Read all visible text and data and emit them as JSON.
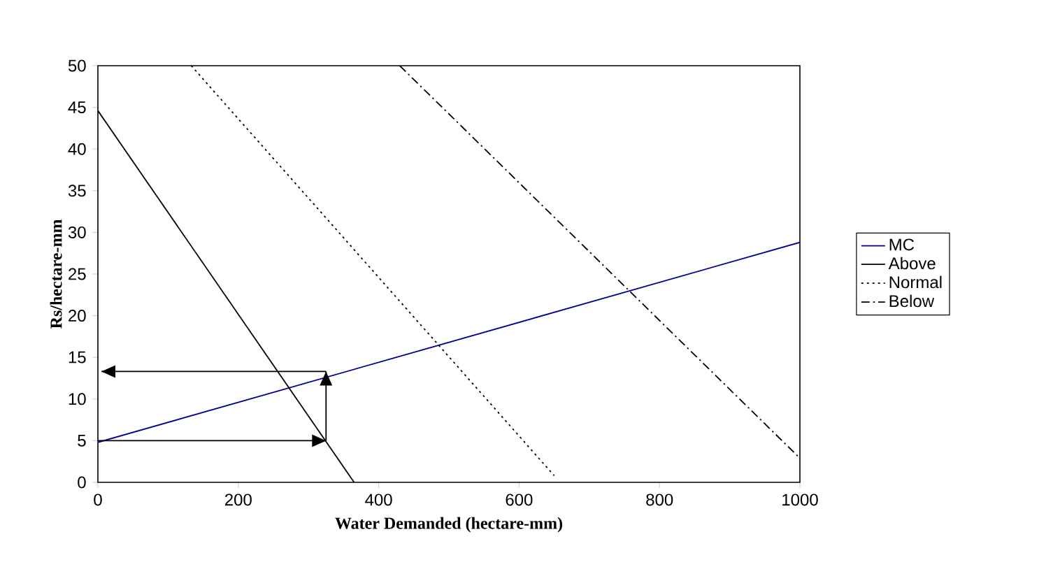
{
  "chart_data": {
    "type": "line",
    "xlabel": "Water Demanded (hectare-mm)",
    "ylabel": "Rs/hectare-mm",
    "xlim": [
      0,
      1000
    ],
    "xticks": [
      0,
      200,
      400,
      600,
      800,
      1000
    ],
    "ylim": [
      0,
      50
    ],
    "yticks": [
      0,
      5,
      10,
      15,
      20,
      25,
      30,
      35,
      40,
      45,
      50
    ],
    "grid": false,
    "legend": "right",
    "marker": "none",
    "series": [
      {
        "name": "MC",
        "color": "#000099",
        "line_style": "solid",
        "x": [
          0,
          1000
        ],
        "values": [
          4.8,
          28.8
        ]
      },
      {
        "name": "Above",
        "color": "#000000",
        "line_style": "solid",
        "x": [
          0,
          365
        ],
        "values": [
          44.6,
          0
        ]
      },
      {
        "name": "Normal",
        "color": "#000000",
        "line_style": "dotted",
        "x": [
          133,
          650
        ],
        "values": [
          50,
          0.8
        ]
      },
      {
        "name": "Below",
        "color": "#000000",
        "line_style": "dashed",
        "x": [
          430,
          1000
        ],
        "values": [
          50,
          2.9
        ]
      },
      {
        "color": "#000000",
        "line_style": "solid",
        "x": [
          0,
          325
        ],
        "values": [
          5,
          5
        ]
      },
      {
        "color": "#000000",
        "line_style": "solid",
        "x": [
          325,
          325
        ],
        "values": [
          5,
          13.3
        ]
      },
      {
        "color": "#000000",
        "line_style": "solid",
        "x": [
          325,
          5
        ],
        "values": [
          13.3,
          13.3
        ]
      }
    ]
  }
}
